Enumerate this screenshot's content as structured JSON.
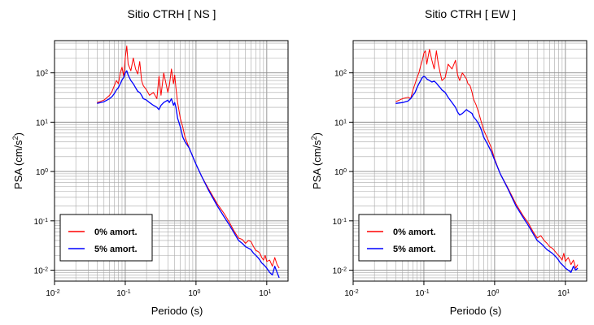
{
  "chart_data": [
    {
      "type": "line",
      "title": "Sitio CTRH [ NS ]",
      "xlabel": "Periodo (s)",
      "ylabel": "PSA (cm/s",
      "ylabel_sup": "2",
      "ylabel_end": ")",
      "xscale": "log",
      "yscale": "log",
      "xlim": [
        0.01,
        20
      ],
      "ylim": [
        0.006,
        450
      ],
      "grid": true,
      "legend_position": "bottom-left",
      "xticks": [
        {
          "base": "10",
          "exp": "-2"
        },
        {
          "base": "10",
          "exp": "-1"
        },
        {
          "base": "10",
          "exp": "0"
        },
        {
          "base": "10",
          "exp": "1"
        }
      ],
      "yticks": [
        {
          "base": "10",
          "exp": "-2"
        },
        {
          "base": "10",
          "exp": "-1"
        },
        {
          "base": "10",
          "exp": "0"
        },
        {
          "base": "10",
          "exp": "1"
        },
        {
          "base": "10",
          "exp": "2"
        }
      ],
      "series": [
        {
          "name": "0% amort.",
          "color": "#ff0000",
          "x": [
            0.04,
            0.05,
            0.06,
            0.065,
            0.07,
            0.075,
            0.08,
            0.085,
            0.09,
            0.095,
            0.1,
            0.105,
            0.11,
            0.12,
            0.13,
            0.14,
            0.15,
            0.16,
            0.17,
            0.18,
            0.2,
            0.22,
            0.25,
            0.28,
            0.3,
            0.32,
            0.35,
            0.4,
            0.42,
            0.45,
            0.48,
            0.5,
            0.52,
            0.55,
            0.6,
            0.65,
            0.7,
            0.8,
            0.9,
            1.0,
            1.2,
            1.5,
            2.0,
            2.5,
            3.0,
            3.5,
            4.0,
            4.5,
            5.0,
            5.5,
            6.0,
            6.5,
            7.0,
            7.5,
            8.0,
            8.5,
            9.0,
            9.5,
            10.0,
            11.0,
            12.0,
            13.0,
            14.0,
            15.0
          ],
          "y": [
            25,
            28,
            35,
            42,
            55,
            70,
            60,
            100,
            130,
            85,
            200,
            350,
            150,
            110,
            200,
            120,
            95,
            170,
            70,
            55,
            45,
            35,
            40,
            30,
            85,
            35,
            100,
            40,
            55,
            120,
            60,
            90,
            50,
            25,
            12,
            8,
            5,
            3,
            2,
            1.4,
            0.8,
            0.45,
            0.22,
            0.14,
            0.09,
            0.06,
            0.045,
            0.042,
            0.035,
            0.04,
            0.038,
            0.03,
            0.025,
            0.024,
            0.022,
            0.018,
            0.016,
            0.02,
            0.015,
            0.016,
            0.012,
            0.018,
            0.013,
            0.011
          ]
        },
        {
          "name": "5% amort.",
          "color": "#0000ff",
          "x": [
            0.04,
            0.05,
            0.06,
            0.065,
            0.07,
            0.075,
            0.08,
            0.085,
            0.09,
            0.095,
            0.1,
            0.105,
            0.11,
            0.12,
            0.13,
            0.14,
            0.15,
            0.16,
            0.17,
            0.18,
            0.2,
            0.22,
            0.25,
            0.28,
            0.3,
            0.32,
            0.35,
            0.4,
            0.42,
            0.45,
            0.48,
            0.5,
            0.52,
            0.55,
            0.6,
            0.65,
            0.7,
            0.8,
            0.9,
            1.0,
            1.2,
            1.5,
            2.0,
            2.5,
            3.0,
            3.5,
            4.0,
            4.5,
            5.0,
            5.5,
            6.0,
            6.5,
            7.0,
            7.5,
            8.0,
            8.5,
            9.0,
            9.5,
            10.0,
            11.0,
            12.0,
            13.0,
            14.0,
            15.0
          ],
          "y": [
            24,
            26,
            30,
            33,
            38,
            45,
            50,
            60,
            72,
            80,
            100,
            110,
            90,
            70,
            60,
            50,
            42,
            40,
            35,
            30,
            28,
            25,
            22,
            20,
            18,
            22,
            25,
            28,
            25,
            30,
            22,
            25,
            20,
            12,
            8,
            5,
            4,
            3,
            2,
            1.4,
            0.8,
            0.42,
            0.2,
            0.12,
            0.08,
            0.055,
            0.04,
            0.035,
            0.03,
            0.028,
            0.026,
            0.022,
            0.02,
            0.018,
            0.016,
            0.014,
            0.013,
            0.012,
            0.011,
            0.009,
            0.008,
            0.012,
            0.009,
            0.007
          ]
        }
      ]
    },
    {
      "type": "line",
      "title": "Sitio CTRH [ EW ]",
      "xlabel": "Periodo (s)",
      "ylabel": "PSA (cm/s",
      "ylabel_sup": "2",
      "ylabel_end": ")",
      "xscale": "log",
      "yscale": "log",
      "xlim": [
        0.01,
        20
      ],
      "ylim": [
        0.006,
        450
      ],
      "grid": true,
      "legend_position": "bottom-left",
      "xticks": [
        {
          "base": "10",
          "exp": "-2"
        },
        {
          "base": "10",
          "exp": "-1"
        },
        {
          "base": "10",
          "exp": "0"
        },
        {
          "base": "10",
          "exp": "1"
        }
      ],
      "yticks": [
        {
          "base": "10",
          "exp": "-2"
        },
        {
          "base": "10",
          "exp": "-1"
        },
        {
          "base": "10",
          "exp": "0"
        },
        {
          "base": "10",
          "exp": "1"
        },
        {
          "base": "10",
          "exp": "2"
        }
      ],
      "series": [
        {
          "name": "0% amort.",
          "color": "#ff0000",
          "x": [
            0.04,
            0.05,
            0.06,
            0.065,
            0.07,
            0.075,
            0.08,
            0.085,
            0.09,
            0.095,
            0.1,
            0.105,
            0.11,
            0.12,
            0.13,
            0.14,
            0.15,
            0.16,
            0.17,
            0.18,
            0.2,
            0.22,
            0.25,
            0.28,
            0.3,
            0.32,
            0.35,
            0.4,
            0.42,
            0.45,
            0.48,
            0.5,
            0.55,
            0.6,
            0.65,
            0.7,
            0.8,
            0.9,
            1.0,
            1.2,
            1.5,
            2.0,
            2.5,
            3.0,
            3.5,
            4.0,
            4.5,
            5.0,
            5.5,
            6.0,
            6.5,
            7.0,
            7.5,
            8.0,
            8.5,
            9.0,
            9.5,
            10.0,
            11.0,
            12.0,
            13.0,
            14.0,
            15.0
          ],
          "y": [
            26,
            30,
            32,
            30,
            45,
            60,
            80,
            100,
            140,
            180,
            250,
            280,
            150,
            300,
            180,
            120,
            280,
            150,
            100,
            70,
            80,
            150,
            120,
            180,
            90,
            70,
            100,
            75,
            60,
            55,
            40,
            30,
            22,
            15,
            10,
            7,
            4.5,
            3,
            1.8,
            0.9,
            0.5,
            0.22,
            0.13,
            0.09,
            0.06,
            0.045,
            0.05,
            0.04,
            0.035,
            0.03,
            0.028,
            0.025,
            0.022,
            0.02,
            0.018,
            0.016,
            0.022,
            0.015,
            0.018,
            0.013,
            0.016,
            0.011,
            0.013
          ]
        },
        {
          "name": "5% amort.",
          "color": "#0000ff",
          "x": [
            0.04,
            0.05,
            0.06,
            0.065,
            0.07,
            0.075,
            0.08,
            0.085,
            0.09,
            0.095,
            0.1,
            0.105,
            0.11,
            0.12,
            0.13,
            0.14,
            0.15,
            0.16,
            0.17,
            0.18,
            0.2,
            0.22,
            0.25,
            0.28,
            0.3,
            0.32,
            0.35,
            0.4,
            0.42,
            0.45,
            0.48,
            0.5,
            0.55,
            0.6,
            0.65,
            0.7,
            0.8,
            0.9,
            1.0,
            1.2,
            1.5,
            2.0,
            2.5,
            3.0,
            3.5,
            4.0,
            4.5,
            5.0,
            5.5,
            6.0,
            6.5,
            7.0,
            7.5,
            8.0,
            8.5,
            9.0,
            9.5,
            10.0,
            11.0,
            12.0,
            13.0,
            14.0,
            15.0
          ],
          "y": [
            24,
            25,
            27,
            30,
            35,
            40,
            50,
            60,
            70,
            80,
            85,
            82,
            75,
            70,
            65,
            68,
            62,
            55,
            50,
            45,
            40,
            32,
            25,
            20,
            16,
            14,
            15,
            18,
            17,
            16,
            15,
            13,
            11,
            9,
            7,
            5,
            3.5,
            2.5,
            1.7,
            0.9,
            0.48,
            0.2,
            0.12,
            0.08,
            0.055,
            0.04,
            0.035,
            0.03,
            0.026,
            0.024,
            0.022,
            0.02,
            0.018,
            0.016,
            0.014,
            0.013,
            0.012,
            0.011,
            0.01,
            0.009,
            0.012,
            0.01,
            0.011
          ]
        }
      ]
    }
  ]
}
